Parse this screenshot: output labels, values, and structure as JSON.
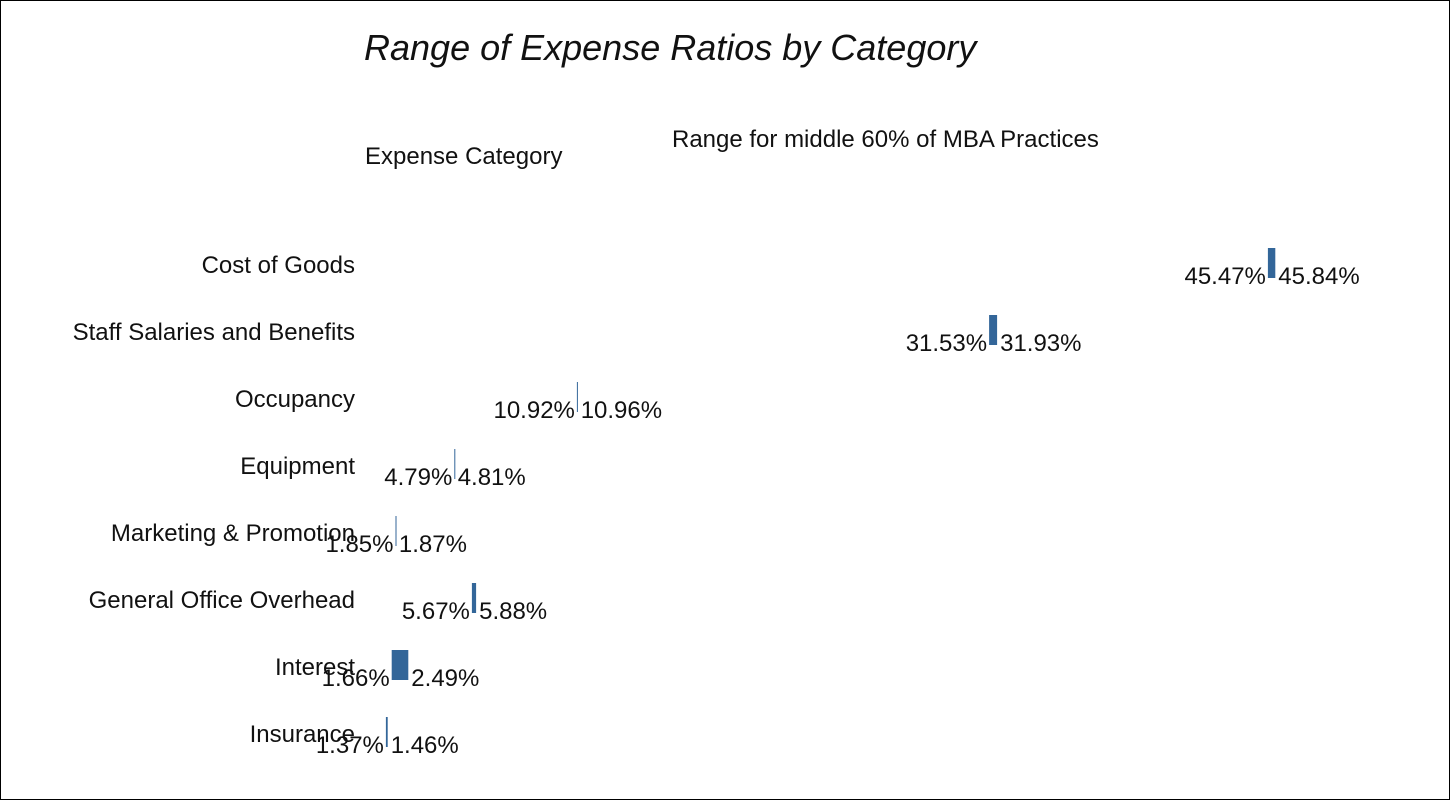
{
  "chart_data": {
    "type": "bar",
    "title": "Range of Expense Ratios by Category",
    "column_headers": {
      "category": "Expense Category",
      "range": "Range for middle 60% of MBA Practices"
    },
    "categories": [
      "Cost of Goods",
      "Staff Salaries and Benefits",
      "Occupancy",
      "Equipment",
      "Marketing & Promotion",
      "General Office Overhead",
      "Interest",
      "Insurance"
    ],
    "series": [
      {
        "low": [
          45.47,
          31.53,
          10.92,
          4.79,
          1.85,
          5.67,
          1.66,
          1.37
        ],
        "high": [
          45.84,
          31.93,
          10.96,
          4.81,
          1.87,
          5.88,
          2.49,
          1.46
        ],
        "low_labels": [
          "45.47%",
          "31.53%",
          "10.92%",
          "4.79%",
          "1.85%",
          "5.67%",
          "1.66%",
          "1.37%"
        ],
        "high_labels": [
          "45.84%",
          "31.93%",
          "10.96%",
          "4.81%",
          "1.87%",
          "5.88%",
          "2.49%",
          "1.46%"
        ]
      }
    ],
    "bar_color": "#336699",
    "grid": false,
    "legend": "none"
  }
}
